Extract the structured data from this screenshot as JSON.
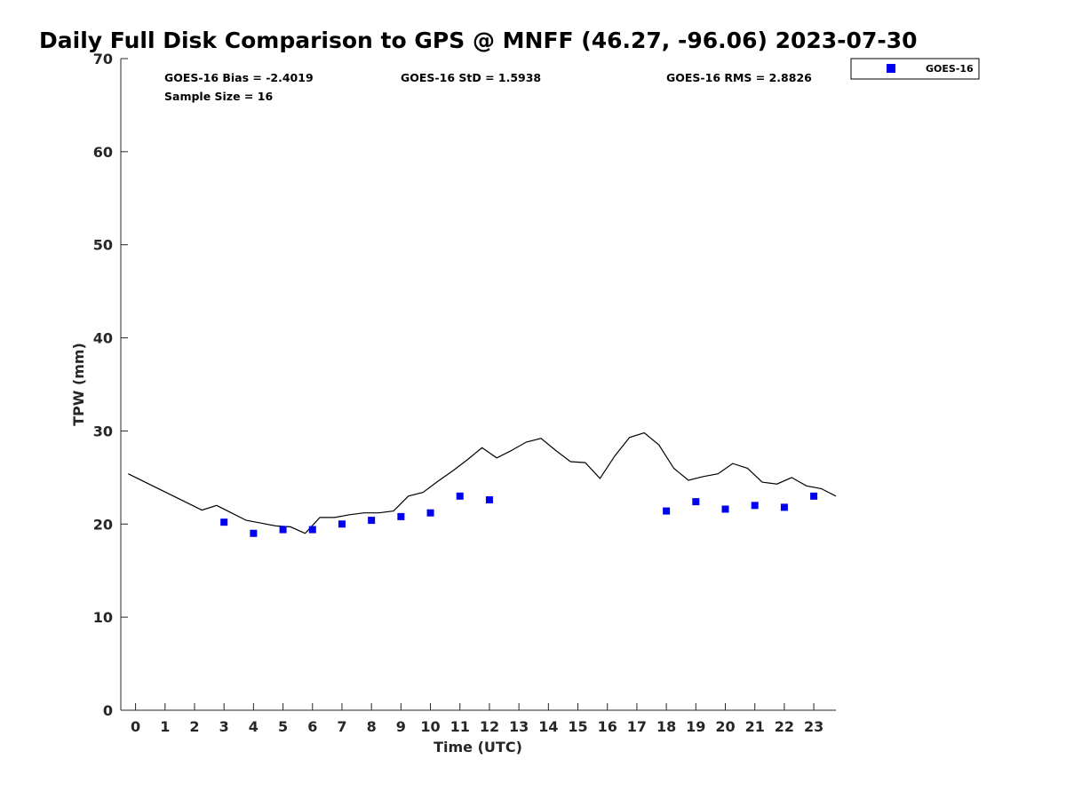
{
  "chart_data": {
    "type": "scatter",
    "title": "Daily Full Disk Comparison to GPS @ MNFF (46.27, -96.06) 2023-07-30",
    "xlabel": "Time (UTC)",
    "ylabel": "TPW (mm)",
    "xlim": [
      -0.5,
      23.75
    ],
    "ylim": [
      0,
      70
    ],
    "xticks": [
      "0",
      "1",
      "2",
      "3",
      "4",
      "5",
      "6",
      "7",
      "8",
      "9",
      "10",
      "11",
      "12",
      "13",
      "14",
      "15",
      "16",
      "17",
      "18",
      "19",
      "20",
      "21",
      "22",
      "23"
    ],
    "yticks": [
      "0",
      "10",
      "20",
      "30",
      "40",
      "50",
      "60",
      "70"
    ],
    "grid": false,
    "legend_position": "top-right, outside plot",
    "stats": {
      "bias": "GOES-16 Bias = -2.4019",
      "std": "GOES-16 StD = 1.5938",
      "rms": "GOES-16 RMS = 2.8826",
      "sample": "Sample Size = 16"
    },
    "series": [
      {
        "name": "GOES-16",
        "kind": "scatter",
        "marker": "square",
        "color": "#0000ee",
        "points": [
          [
            3.0,
            20.2
          ],
          [
            4.0,
            19.0
          ],
          [
            5.0,
            19.4
          ],
          [
            6.0,
            19.4
          ],
          [
            7.0,
            20.0
          ],
          [
            8.0,
            20.4
          ],
          [
            9.0,
            20.8
          ],
          [
            10.0,
            21.2
          ],
          [
            11.0,
            23.0
          ],
          [
            12.0,
            22.6
          ],
          [
            18.0,
            21.4
          ],
          [
            19.0,
            22.4
          ],
          [
            20.0,
            21.6
          ],
          [
            21.0,
            22.0
          ],
          [
            22.0,
            21.8
          ],
          [
            23.0,
            23.0
          ]
        ]
      },
      {
        "kind": "line",
        "color": "#000000",
        "points": [
          [
            -0.25,
            25.4
          ],
          [
            2.25,
            21.5
          ],
          [
            2.75,
            22.0
          ],
          [
            3.25,
            21.2
          ],
          [
            3.75,
            20.4
          ],
          [
            4.25,
            20.1
          ],
          [
            4.75,
            19.8
          ],
          [
            5.25,
            19.7
          ],
          [
            5.75,
            19.0
          ],
          [
            6.25,
            20.7
          ],
          [
            6.75,
            20.7
          ],
          [
            7.25,
            21.0
          ],
          [
            7.75,
            21.2
          ],
          [
            8.25,
            21.2
          ],
          [
            8.75,
            21.4
          ],
          [
            9.25,
            23.0
          ],
          [
            9.75,
            23.4
          ],
          [
            10.25,
            24.6
          ],
          [
            10.75,
            25.7
          ],
          [
            11.25,
            26.9
          ],
          [
            11.75,
            28.2
          ],
          [
            12.25,
            27.1
          ],
          [
            12.75,
            27.9
          ],
          [
            13.25,
            28.8
          ],
          [
            13.75,
            29.2
          ],
          [
            14.25,
            27.9
          ],
          [
            14.75,
            26.7
          ],
          [
            15.25,
            26.6
          ],
          [
            15.75,
            24.9
          ],
          [
            16.25,
            27.3
          ],
          [
            16.75,
            29.3
          ],
          [
            17.25,
            29.8
          ],
          [
            17.75,
            28.5
          ],
          [
            18.25,
            26.0
          ],
          [
            18.75,
            24.7
          ],
          [
            19.25,
            25.1
          ],
          [
            19.75,
            25.4
          ],
          [
            20.25,
            26.5
          ],
          [
            20.75,
            26.0
          ],
          [
            21.25,
            24.5
          ],
          [
            21.75,
            24.3
          ],
          [
            22.25,
            25.0
          ],
          [
            22.75,
            24.1
          ],
          [
            23.25,
            23.8
          ],
          [
            23.75,
            23.0
          ]
        ]
      }
    ]
  }
}
